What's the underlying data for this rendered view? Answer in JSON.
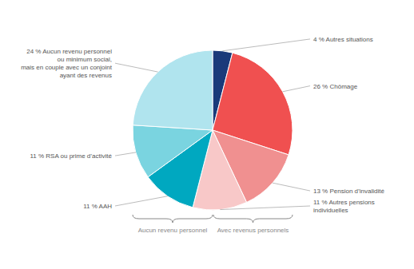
{
  "chart_data": {
    "type": "pie",
    "categories": [
      "4 % Autres situations",
      "26 % Chômage",
      "13 % Pension d’invalidité",
      "11 % Autres pensions\nindividuelles",
      "11 % AAH",
      "11 % RSA ou prime d’activité",
      "24 % Aucun revenu personnel\nou minimum social,\nmais en couple avec un conjoint\nayant des revenus"
    ],
    "values": [
      4,
      26,
      13,
      11,
      11,
      11,
      24
    ],
    "colors": [
      "#1a3a7a",
      "#f05050",
      "#f09090",
      "#f8c8c8",
      "#00a8c0",
      "#7ad4e0",
      "#b0e4ee"
    ],
    "annotations": [
      "Aucun revenu personnel",
      "Avec revenus personnels"
    ]
  }
}
